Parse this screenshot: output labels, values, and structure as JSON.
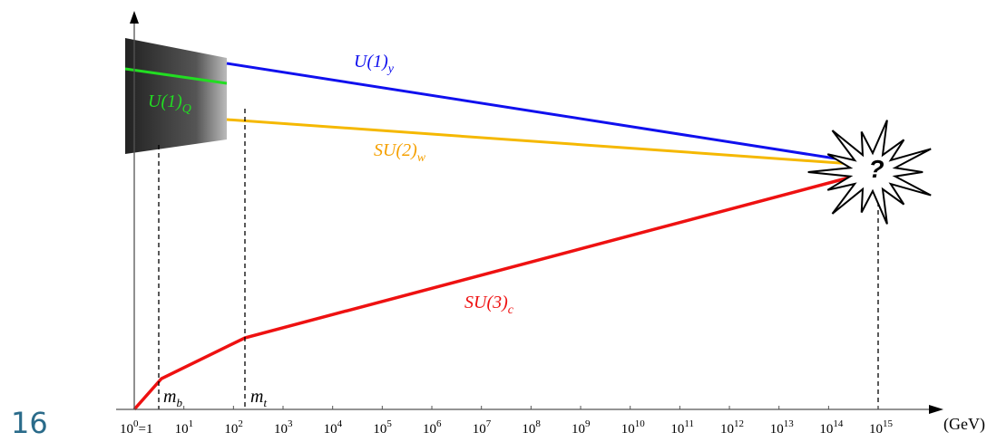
{
  "page_number": "16",
  "x_axis": {
    "ticks": [
      {
        "base": "10",
        "exp": "0",
        "suffix": "=1"
      },
      {
        "base": "10",
        "exp": "1"
      },
      {
        "base": "10",
        "exp": "2"
      },
      {
        "base": "10",
        "exp": "3"
      },
      {
        "base": "10",
        "exp": "4"
      },
      {
        "base": "10",
        "exp": "5"
      },
      {
        "base": "10",
        "exp": "6"
      },
      {
        "base": "10",
        "exp": "7"
      },
      {
        "base": "10",
        "exp": "8"
      },
      {
        "base": "10",
        "exp": "9"
      },
      {
        "base": "10",
        "exp": "10"
      },
      {
        "base": "10",
        "exp": "11"
      },
      {
        "base": "10",
        "exp": "12"
      },
      {
        "base": "10",
        "exp": "13"
      },
      {
        "base": "10",
        "exp": "14"
      },
      {
        "base": "10",
        "exp": "15"
      }
    ],
    "unit": "(GeV)"
  },
  "labels": {
    "u1y": {
      "main": "U(1)",
      "sub": "y"
    },
    "u1q": {
      "main": "U(1)",
      "sub": "Q"
    },
    "su2w": {
      "main": "SU(2)",
      "sub": "w"
    },
    "su3c": {
      "main": "SU(3)",
      "sub": "c"
    },
    "mb": {
      "main": "m",
      "sub": "b"
    },
    "mt": {
      "main": "m",
      "sub": "t"
    },
    "unification": "?"
  }
}
